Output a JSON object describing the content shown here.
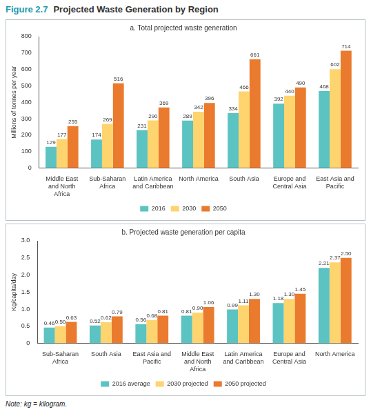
{
  "figure": {
    "label": "Figure 2.7",
    "title": "Projected Waste Generation by Region"
  },
  "note": "Note: kg = kilogram.",
  "chart_data": [
    {
      "type": "bar",
      "title": "a. Total projected waste generation",
      "ylabel": "Millions of tonnes per year",
      "categories": [
        "Middle East and North Africa",
        "Sub-Saharan Africa",
        "Latin America and Caribbean",
        "North America",
        "South Asia",
        "Europe and Central Asia",
        "East Asia and Pacific"
      ],
      "series": [
        {
          "name": "2016",
          "color": "#5bc3c1",
          "values": [
            129,
            174,
            231,
            289,
            334,
            392,
            468
          ]
        },
        {
          "name": "2030",
          "color": "#fed46e",
          "values": [
            177,
            269,
            290,
            342,
            466,
            440,
            602
          ]
        },
        {
          "name": "2050",
          "color": "#ea7a2d",
          "values": [
            255,
            516,
            369,
            396,
            661,
            490,
            714
          ]
        }
      ],
      "ylim": [
        0,
        800
      ],
      "yticks": [
        0,
        100,
        200,
        300,
        400,
        500,
        600,
        700,
        800
      ],
      "grid": false,
      "legend": "bottom",
      "data_labels": true
    },
    {
      "type": "bar",
      "title": "b. Projected waste generation per capita",
      "ylabel": "Kg/capita/day",
      "categories": [
        "Sub-Saharan Africa",
        "South Asia",
        "East Asia and Pacific",
        "Middle East and North Africa",
        "Latin America and Caribbean",
        "Europe and Central Asia",
        "North America"
      ],
      "series": [
        {
          "name": "2016 average",
          "color": "#5bc3c1",
          "values": [
            0.46,
            0.52,
            0.56,
            0.81,
            0.99,
            1.18,
            2.21
          ],
          "value_labels": [
            "0.46",
            "0.52",
            "0.56",
            "0.81",
            "0.99",
            "1.18",
            "2.21"
          ]
        },
        {
          "name": "2030 projected",
          "color": "#fed46e",
          "values": [
            0.5,
            0.62,
            0.68,
            0.9,
            1.11,
            1.3,
            2.37
          ],
          "value_labels": [
            "0.50",
            "0.62",
            "0.68",
            "0.90",
            "1.11",
            "1.30",
            "2.37"
          ]
        },
        {
          "name": "2050 projected",
          "color": "#ea7a2d",
          "values": [
            0.63,
            0.79,
            0.81,
            1.06,
            1.3,
            1.45,
            2.5
          ],
          "value_labels": [
            "0.63",
            "0.79",
            "0.81",
            "1.06",
            "1.30",
            "1.45",
            "2.50"
          ]
        }
      ],
      "ylim": [
        0,
        3
      ],
      "yticks": [
        0,
        0.5,
        {
          "value": 1,
          "label": "1.0"
        },
        1.5,
        {
          "value": 2,
          "label": "2.0"
        },
        2.5,
        {
          "value": 3,
          "label": "3.0"
        }
      ],
      "grid": false,
      "legend": "bottom",
      "data_labels": true
    }
  ]
}
